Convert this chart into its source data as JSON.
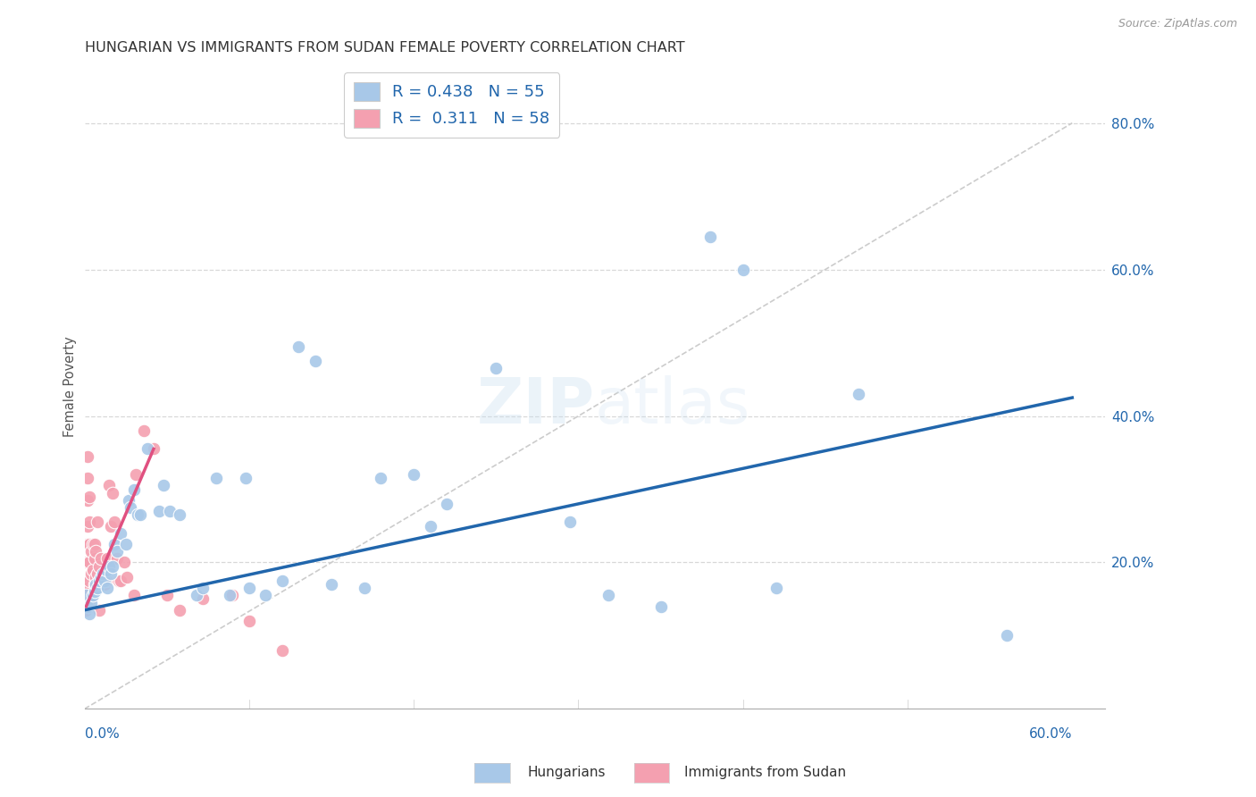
{
  "title": "HUNGARIAN VS IMMIGRANTS FROM SUDAN FEMALE POVERTY CORRELATION CHART",
  "source": "Source: ZipAtlas.com",
  "ylabel": "Female Poverty",
  "right_yticks": [
    "80.0%",
    "60.0%",
    "40.0%",
    "20.0%"
  ],
  "right_ytick_vals": [
    0.8,
    0.6,
    0.4,
    0.2
  ],
  "xlim": [
    0.0,
    0.62
  ],
  "ylim": [
    0.0,
    0.88
  ],
  "blue_color": "#a8c8e8",
  "pink_color": "#f4a0b0",
  "blue_line_color": "#2166ac",
  "pink_line_color": "#e05080",
  "dashed_line_color": "#cccccc",
  "background_color": "#ffffff",
  "grid_color": "#d8d8d8",
  "blue_scatter": [
    [
      0.001,
      0.155
    ],
    [
      0.002,
      0.14
    ],
    [
      0.003,
      0.13
    ],
    [
      0.004,
      0.145
    ],
    [
      0.005,
      0.155
    ],
    [
      0.006,
      0.16
    ],
    [
      0.007,
      0.17
    ],
    [
      0.008,
      0.165
    ],
    [
      0.009,
      0.175
    ],
    [
      0.01,
      0.18
    ],
    [
      0.011,
      0.185
    ],
    [
      0.012,
      0.175
    ],
    [
      0.013,
      0.19
    ],
    [
      0.014,
      0.165
    ],
    [
      0.015,
      0.195
    ],
    [
      0.016,
      0.185
    ],
    [
      0.017,
      0.195
    ],
    [
      0.018,
      0.225
    ],
    [
      0.02,
      0.215
    ],
    [
      0.022,
      0.24
    ],
    [
      0.025,
      0.225
    ],
    [
      0.027,
      0.285
    ],
    [
      0.028,
      0.275
    ],
    [
      0.03,
      0.3
    ],
    [
      0.032,
      0.265
    ],
    [
      0.034,
      0.265
    ],
    [
      0.038,
      0.355
    ],
    [
      0.045,
      0.27
    ],
    [
      0.048,
      0.305
    ],
    [
      0.052,
      0.27
    ],
    [
      0.058,
      0.265
    ],
    [
      0.068,
      0.155
    ],
    [
      0.072,
      0.165
    ],
    [
      0.08,
      0.315
    ],
    [
      0.088,
      0.155
    ],
    [
      0.098,
      0.315
    ],
    [
      0.1,
      0.165
    ],
    [
      0.11,
      0.155
    ],
    [
      0.12,
      0.175
    ],
    [
      0.13,
      0.495
    ],
    [
      0.14,
      0.475
    ],
    [
      0.15,
      0.17
    ],
    [
      0.17,
      0.165
    ],
    [
      0.18,
      0.315
    ],
    [
      0.2,
      0.32
    ],
    [
      0.21,
      0.25
    ],
    [
      0.22,
      0.28
    ],
    [
      0.25,
      0.465
    ],
    [
      0.295,
      0.255
    ],
    [
      0.318,
      0.155
    ],
    [
      0.35,
      0.14
    ],
    [
      0.38,
      0.645
    ],
    [
      0.4,
      0.6
    ],
    [
      0.42,
      0.165
    ],
    [
      0.47,
      0.43
    ],
    [
      0.56,
      0.1
    ]
  ],
  "pink_scatter": [
    [
      0.001,
      0.135
    ],
    [
      0.001,
      0.155
    ],
    [
      0.001,
      0.175
    ],
    [
      0.001,
      0.2
    ],
    [
      0.002,
      0.145
    ],
    [
      0.002,
      0.165
    ],
    [
      0.002,
      0.2
    ],
    [
      0.002,
      0.225
    ],
    [
      0.002,
      0.25
    ],
    [
      0.002,
      0.285
    ],
    [
      0.002,
      0.315
    ],
    [
      0.002,
      0.345
    ],
    [
      0.003,
      0.14
    ],
    [
      0.003,
      0.175
    ],
    [
      0.003,
      0.2
    ],
    [
      0.003,
      0.225
    ],
    [
      0.003,
      0.255
    ],
    [
      0.003,
      0.29
    ],
    [
      0.004,
      0.15
    ],
    [
      0.004,
      0.185
    ],
    [
      0.004,
      0.215
    ],
    [
      0.005,
      0.155
    ],
    [
      0.005,
      0.19
    ],
    [
      0.005,
      0.225
    ],
    [
      0.006,
      0.17
    ],
    [
      0.006,
      0.205
    ],
    [
      0.006,
      0.225
    ],
    [
      0.007,
      0.18
    ],
    [
      0.007,
      0.215
    ],
    [
      0.008,
      0.185
    ],
    [
      0.008,
      0.255
    ],
    [
      0.009,
      0.195
    ],
    [
      0.009,
      0.135
    ],
    [
      0.01,
      0.175
    ],
    [
      0.01,
      0.205
    ],
    [
      0.011,
      0.175
    ],
    [
      0.012,
      0.17
    ],
    [
      0.013,
      0.175
    ],
    [
      0.014,
      0.205
    ],
    [
      0.015,
      0.305
    ],
    [
      0.016,
      0.25
    ],
    [
      0.017,
      0.295
    ],
    [
      0.018,
      0.255
    ],
    [
      0.02,
      0.205
    ],
    [
      0.021,
      0.175
    ],
    [
      0.022,
      0.175
    ],
    [
      0.024,
      0.2
    ],
    [
      0.026,
      0.18
    ],
    [
      0.03,
      0.155
    ],
    [
      0.031,
      0.32
    ],
    [
      0.036,
      0.38
    ],
    [
      0.042,
      0.355
    ],
    [
      0.05,
      0.155
    ],
    [
      0.058,
      0.135
    ],
    [
      0.072,
      0.15
    ],
    [
      0.09,
      0.155
    ],
    [
      0.1,
      0.12
    ],
    [
      0.12,
      0.08
    ]
  ],
  "blue_trendline_x": [
    0.0,
    0.6
  ],
  "blue_trendline_y": [
    0.135,
    0.425
  ],
  "pink_trendline_x": [
    0.001,
    0.042
  ],
  "pink_trendline_y": [
    0.14,
    0.355
  ],
  "diagonal_line_x": [
    0.0,
    0.6
  ],
  "diagonal_line_y": [
    0.0,
    0.8
  ]
}
